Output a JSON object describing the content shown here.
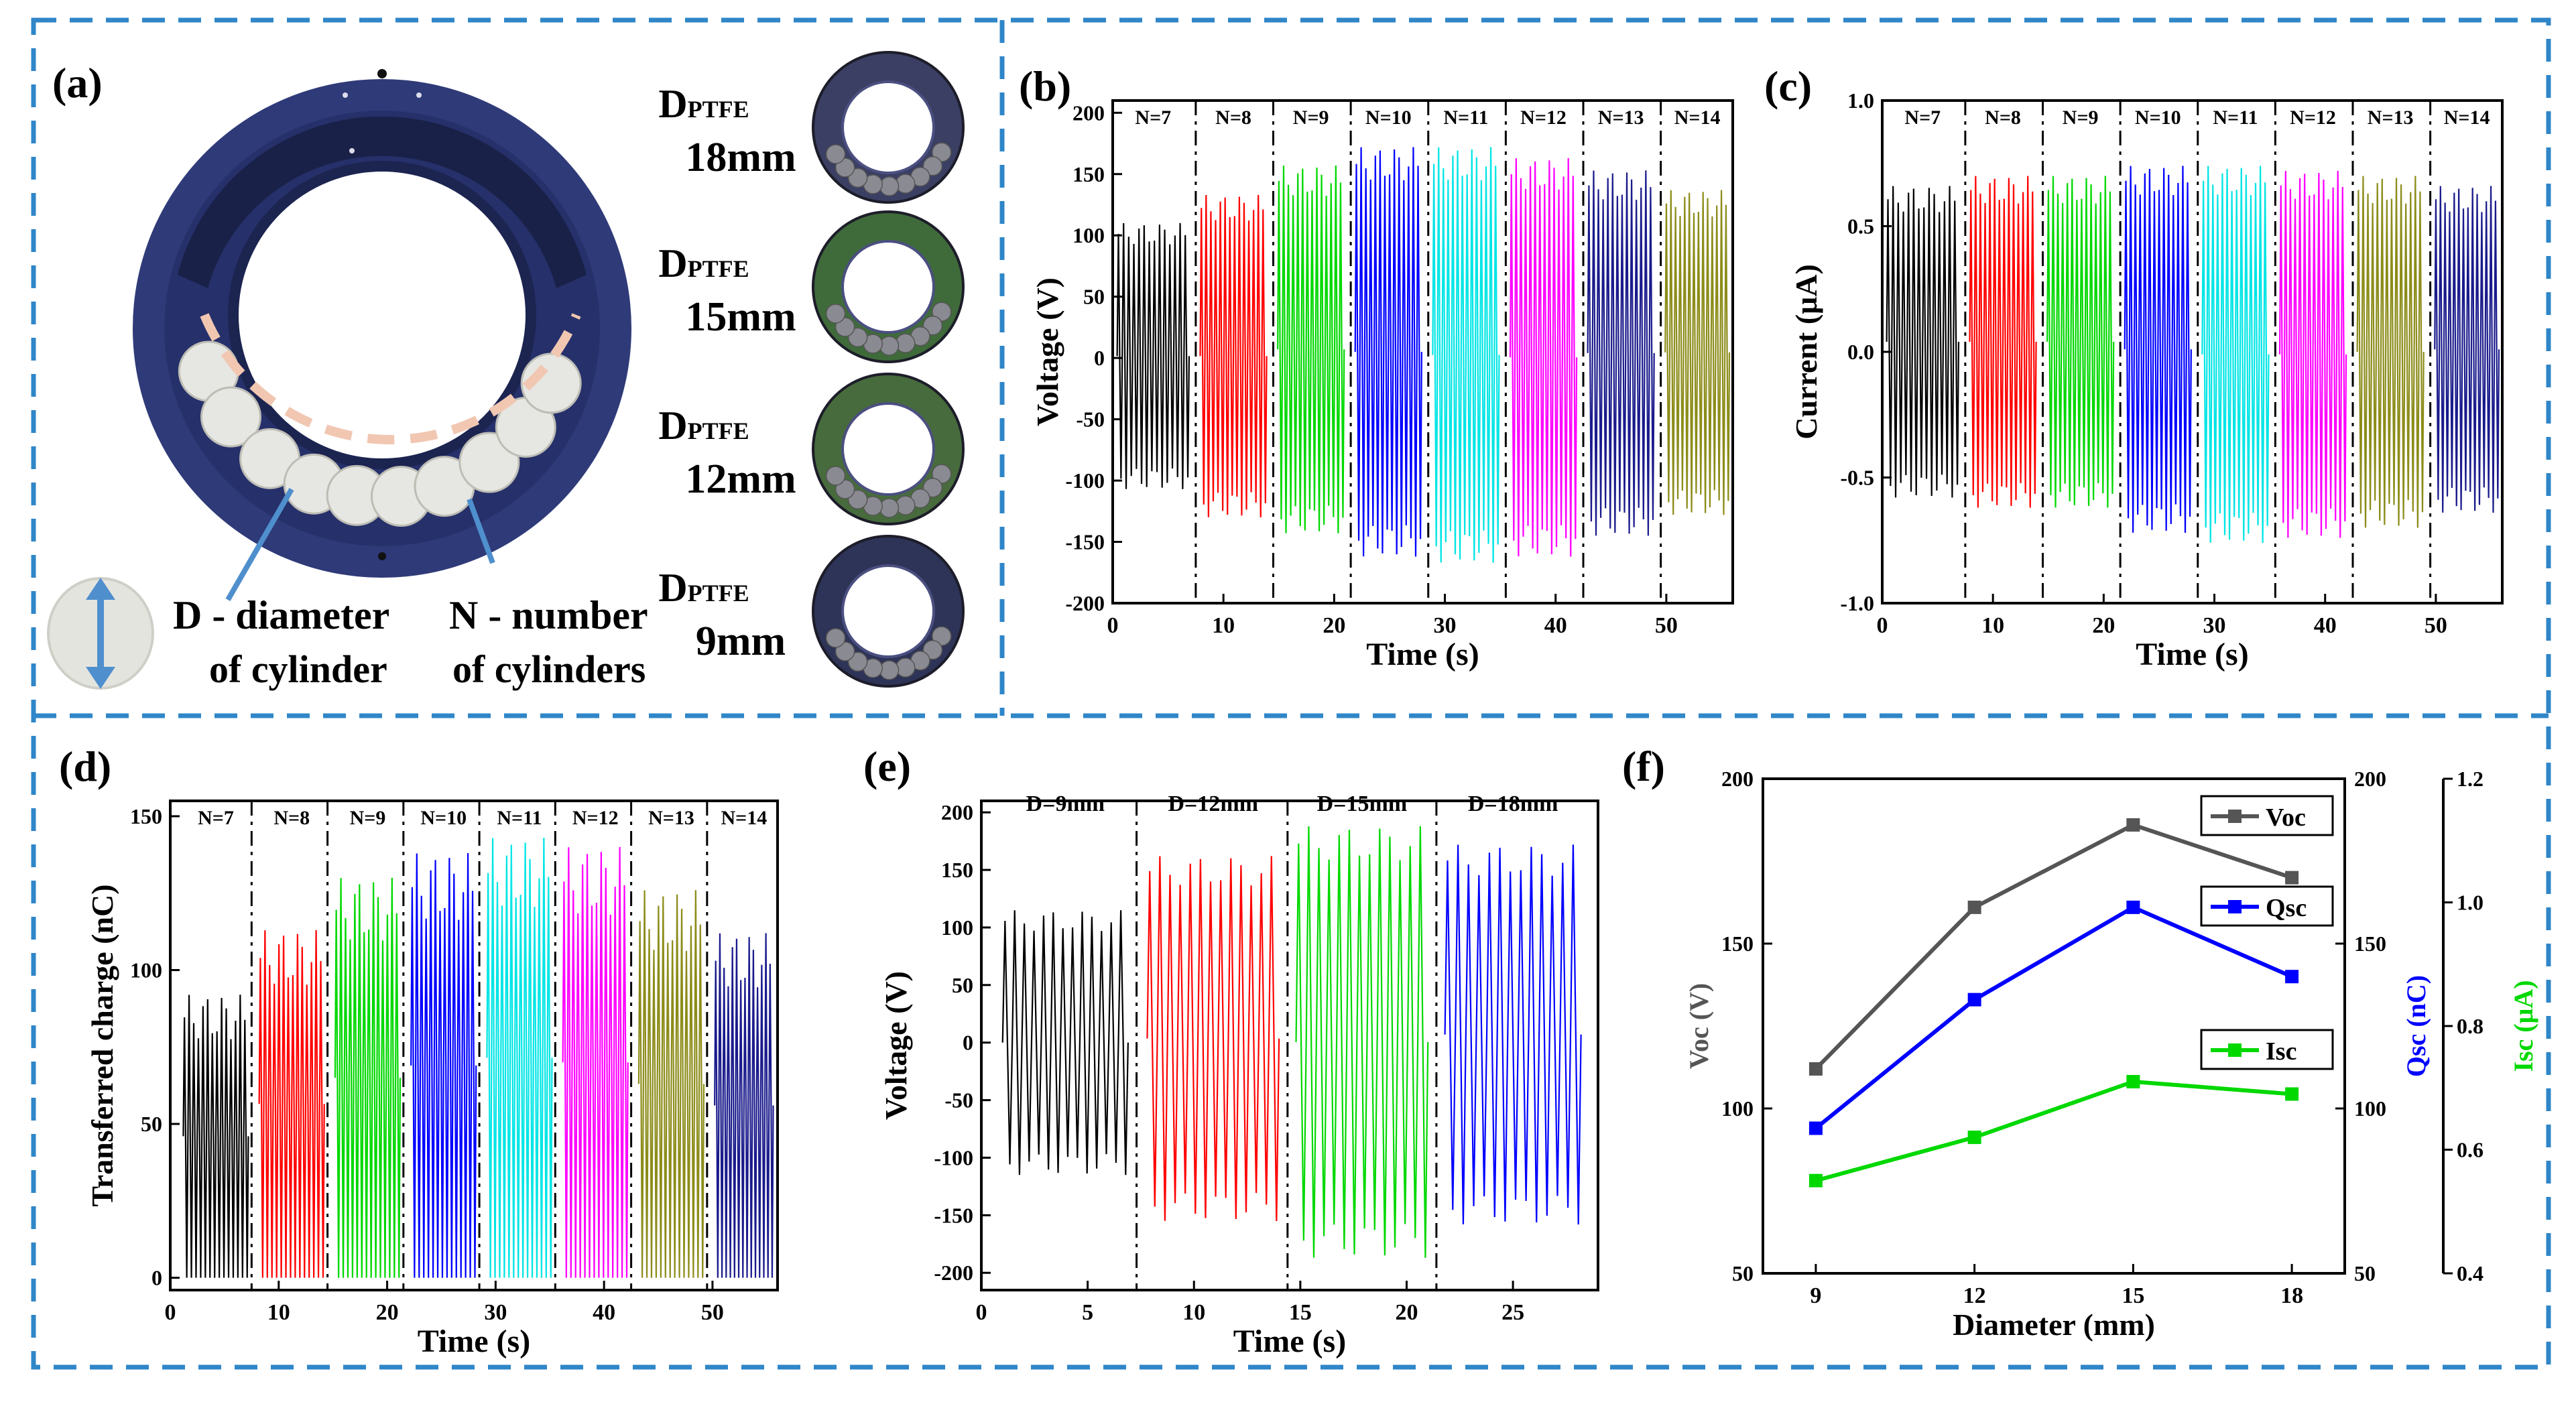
{
  "panel_a": {
    "label": "(a)",
    "d_label": "D - diameter",
    "d_label2": "of cylinder",
    "n_label": "N - number",
    "n_label2": "of cylinders",
    "rings": [
      {
        "prefix": "D",
        "sub": "PTFE",
        "size": "18mm",
        "color": "#3a3f63"
      },
      {
        "prefix": "D",
        "sub": "PTFE",
        "size": "15mm",
        "color": "#3f6a3a"
      },
      {
        "prefix": "D",
        "sub": "PTFE",
        "size": "12mm",
        "color": "#476b3c"
      },
      {
        "prefix": "D",
        "sub": "PTFE",
        "size": "9mm",
        "color": "#2e3457"
      }
    ],
    "colors": {
      "housing": "#2f3a78",
      "inner": "#1c2450",
      "roller": "#e6e6e2",
      "dash": "#f1c7b2",
      "arrow": "#4f8fcd"
    }
  },
  "chart_data": [
    {
      "id": "b",
      "label": "(b)",
      "type": "line",
      "xlabel": "Time (s)",
      "ylabel": "Voltage (V)",
      "xlim": [
        0,
        56
      ],
      "ylim": [
        -200,
        210
      ],
      "xticks": [
        "0",
        "10",
        "20",
        "30",
        "40",
        "50"
      ],
      "xtick_values": [
        0,
        10,
        20,
        30,
        40,
        50
      ],
      "yticks": [
        "-200",
        "-150",
        "-100",
        "-50",
        "0",
        "50",
        "100",
        "150",
        "200"
      ],
      "ytick_values": [
        -200,
        -150,
        -100,
        -50,
        0,
        50,
        100,
        150,
        200
      ],
      "separators": [
        7.5,
        14.5,
        21.5,
        28.5,
        35.5,
        42.5,
        49.5
      ],
      "segments": [
        {
          "name": "N=7",
          "x": [
            0.4,
            6.9
          ],
          "high": 110,
          "low": -107,
          "color": "#000000"
        },
        {
          "name": "N=8",
          "x": [
            7.9,
            13.9
          ],
          "high": 133,
          "low": -130,
          "color": "#ff0000"
        },
        {
          "name": "N=9",
          "x": [
            14.9,
            20.9
          ],
          "high": 157,
          "low": -143,
          "color": "#00d800"
        },
        {
          "name": "N=10",
          "x": [
            21.9,
            27.9
          ],
          "high": 172,
          "low": -162,
          "color": "#0000ff"
        },
        {
          "name": "N=11",
          "x": [
            28.9,
            34.9
          ],
          "high": 172,
          "low": -167,
          "color": "#00e5e5"
        },
        {
          "name": "N=12",
          "x": [
            35.9,
            41.9
          ],
          "high": 163,
          "low": -162,
          "color": "#ff00ff"
        },
        {
          "name": "N=13",
          "x": [
            42.9,
            48.9
          ],
          "high": 153,
          "low": -145,
          "color": "#1a1a8c"
        },
        {
          "name": "N=14",
          "x": [
            49.9,
            55.7
          ],
          "high": 137,
          "low": -128,
          "color": "#8c8c1a"
        }
      ]
    },
    {
      "id": "c",
      "label": "(c)",
      "type": "line",
      "xlabel": "Time (s)",
      "ylabel": "Current (μA)",
      "xlim": [
        0,
        56
      ],
      "ylim": [
        -1.0,
        1.0
      ],
      "xticks": [
        "0",
        "10",
        "20",
        "30",
        "40",
        "50"
      ],
      "xtick_values": [
        0,
        10,
        20,
        30,
        40,
        50
      ],
      "yticks": [
        "-1.0",
        "-0.5",
        "0.0",
        "0.5",
        "1.0"
      ],
      "ytick_values": [
        -1.0,
        -0.5,
        0.0,
        0.5,
        1.0
      ],
      "separators": [
        7.5,
        14.5,
        21.5,
        28.5,
        35.5,
        42.5,
        49.5
      ],
      "segments": [
        {
          "name": "N=7",
          "x": [
            0.4,
            6.9
          ],
          "high": 0.66,
          "low": -0.58,
          "color": "#000000"
        },
        {
          "name": "N=8",
          "x": [
            7.9,
            13.9
          ],
          "high": 0.7,
          "low": -0.62,
          "color": "#ff0000"
        },
        {
          "name": "N=9",
          "x": [
            14.9,
            20.9
          ],
          "high": 0.7,
          "low": -0.62,
          "color": "#00d800"
        },
        {
          "name": "N=10",
          "x": [
            21.9,
            27.9
          ],
          "high": 0.74,
          "low": -0.72,
          "color": "#0000ff"
        },
        {
          "name": "N=11",
          "x": [
            28.9,
            34.9
          ],
          "high": 0.74,
          "low": -0.76,
          "color": "#00e5e5"
        },
        {
          "name": "N=12",
          "x": [
            35.9,
            41.9
          ],
          "high": 0.72,
          "low": -0.74,
          "color": "#ff00ff"
        },
        {
          "name": "N=13",
          "x": [
            42.9,
            48.9
          ],
          "high": 0.7,
          "low": -0.7,
          "color": "#8c8c1a"
        },
        {
          "name": "N=14",
          "x": [
            49.9,
            55.7
          ],
          "high": 0.66,
          "low": -0.64,
          "color": "#1a1a8c"
        }
      ]
    },
    {
      "id": "d",
      "label": "(d)",
      "type": "line",
      "xlabel": "Time (s)",
      "ylabel": "Transferred charge (nC)",
      "xlim": [
        0,
        56
      ],
      "ylim": [
        -4,
        155
      ],
      "xticks": [
        "0",
        "10",
        "20",
        "30",
        "40",
        "50"
      ],
      "xtick_values": [
        0,
        10,
        20,
        30,
        40,
        50
      ],
      "yticks": [
        "0",
        "50",
        "100",
        "150"
      ],
      "ytick_values": [
        0,
        50,
        100,
        150
      ],
      "separators": [
        7.5,
        14.5,
        21.5,
        28.5,
        35.5,
        42.5,
        49.5
      ],
      "segments": [
        {
          "name": "N=7",
          "x": [
            1.2,
            7.2
          ],
          "high": 92,
          "low": 0,
          "color": "#000000"
        },
        {
          "name": "N=8",
          "x": [
            8.2,
            14.2
          ],
          "high": 113,
          "low": 0,
          "color": "#ff0000"
        },
        {
          "name": "N=9",
          "x": [
            15.2,
            21.2
          ],
          "high": 130,
          "low": 0,
          "color": "#00d800"
        },
        {
          "name": "N=10",
          "x": [
            22.2,
            28.2
          ],
          "high": 138,
          "low": 0,
          "color": "#0000ff"
        },
        {
          "name": "N=11",
          "x": [
            29.2,
            35.2
          ],
          "high": 143,
          "low": 0,
          "color": "#00e5e5"
        },
        {
          "name": "N=12",
          "x": [
            36.2,
            42.2
          ],
          "high": 140,
          "low": 0,
          "color": "#ff00ff"
        },
        {
          "name": "N=13",
          "x": [
            43.2,
            49.2
          ],
          "high": 126,
          "low": 0,
          "color": "#8c8c1a"
        },
        {
          "name": "N=14",
          "x": [
            50.2,
            55.6
          ],
          "high": 112,
          "low": 0,
          "color": "#1a1a8c"
        }
      ]
    },
    {
      "id": "e",
      "label": "(e)",
      "type": "line",
      "xlabel": "Time (s)",
      "ylabel": "Voltage (V)",
      "xlim": [
        0,
        29
      ],
      "ylim": [
        -215,
        210
      ],
      "xticks": [
        "0",
        "5",
        "10",
        "15",
        "20",
        "25"
      ],
      "xtick_values": [
        0,
        5,
        10,
        15,
        20,
        25
      ],
      "yticks": [
        "-200",
        "-150",
        "-100",
        "-50",
        "0",
        "50",
        "100",
        "150",
        "200"
      ],
      "ytick_values": [
        -200,
        -150,
        -100,
        -50,
        0,
        50,
        100,
        150,
        200
      ],
      "separators": [
        7.3,
        14.4,
        21.4
      ],
      "segments": [
        {
          "name": "D=9mm",
          "x": [
            1.0,
            6.9
          ],
          "high": 115,
          "low": -115,
          "color": "#000000"
        },
        {
          "name": "D=12mm",
          "x": [
            7.8,
            14.0
          ],
          "high": 162,
          "low": -155,
          "color": "#ff0000"
        },
        {
          "name": "D=15mm",
          "x": [
            14.8,
            21.0
          ],
          "high": 188,
          "low": -187,
          "color": "#00d800"
        },
        {
          "name": "D=18mm",
          "x": [
            21.8,
            28.2
          ],
          "high": 172,
          "low": -158,
          "color": "#0000ff"
        }
      ]
    },
    {
      "id": "f",
      "label": "(f)",
      "type": "line",
      "xlabel": "Diameter (mm)",
      "x": [
        9,
        12,
        15,
        18
      ],
      "xlim": [
        8,
        19
      ],
      "xticks": [
        "9",
        "12",
        "15",
        "18"
      ],
      "axes": [
        {
          "name": "Voc (V)",
          "ylim": [
            50,
            200
          ],
          "yticks": [
            "50",
            "100",
            "150",
            "200"
          ],
          "ytick_values": [
            50,
            100,
            150,
            200
          ],
          "color": "#555555"
        },
        {
          "name": "Qsc (nC)",
          "ylim": [
            50,
            200
          ],
          "yticks": [
            "50",
            "100",
            "150",
            "200"
          ],
          "ytick_values": [
            50,
            100,
            150,
            200
          ],
          "color": "#0000ff"
        },
        {
          "name": "Isc (μA)",
          "ylim": [
            0.4,
            1.2
          ],
          "yticks": [
            "0.4",
            "0.6",
            "0.8",
            "1.0",
            "1.2"
          ],
          "ytick_values": [
            0.4,
            0.6,
            0.8,
            1.0,
            1.2
          ],
          "color": "#00d800"
        }
      ],
      "series": [
        {
          "name": "Voc",
          "axis": 0,
          "values": [
            112,
            161,
            186,
            170
          ],
          "color": "#555555"
        },
        {
          "name": "Qsc",
          "axis": 1,
          "values": [
            94,
            133,
            161,
            140
          ],
          "color": "#0000ff"
        },
        {
          "name": "Isc",
          "axis": 2,
          "values": [
            0.55,
            0.62,
            0.71,
            0.69
          ],
          "color": "#00d800"
        }
      ]
    }
  ]
}
